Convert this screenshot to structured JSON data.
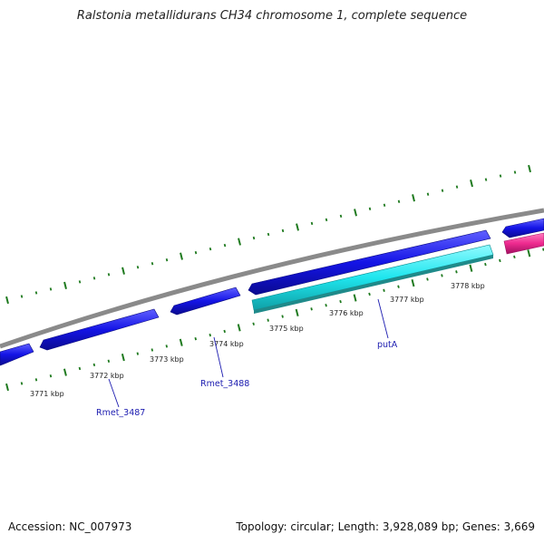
{
  "title": "Ralstonia metallidurans CH34 chromosome 1, complete sequence",
  "footer": {
    "accession": "Accession: NC_007973",
    "summary": "Topology: circular; Length: 3,928,089 bp; Genes: 3,669"
  },
  "ticks": [
    {
      "label": "3771 kbp"
    },
    {
      "label": "3772 kbp"
    },
    {
      "label": "3773 kbp"
    },
    {
      "label": "3774 kbp"
    },
    {
      "label": "3775 kbp"
    },
    {
      "label": "3776 kbp"
    },
    {
      "label": "3777 kbp"
    },
    {
      "label": "3778 kbp"
    }
  ],
  "genes": [
    {
      "label": "Rmet_3487"
    },
    {
      "label": "Rmet_3488"
    },
    {
      "label": "putA"
    }
  ],
  "colors": {
    "backbone": "#888888",
    "forward_gene": "#1414e6",
    "reverse_gene": "#1fe6ee",
    "other_feature": "#ee2a8f",
    "ticks": "#1f7a1f"
  }
}
